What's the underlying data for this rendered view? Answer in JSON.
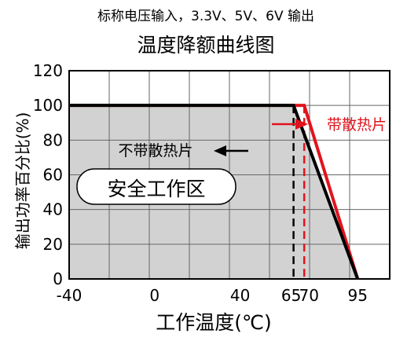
{
  "chart_data": {
    "type": "line",
    "subtitle": "标称电压输入，3.3V、5V、6V 输出",
    "title": "温度降额曲线图",
    "xlabel": "工作温度(℃)",
    "ylabel": "输出功率百分比(%)",
    "xlim": [
      -40,
      110
    ],
    "ylim": [
      0,
      120
    ],
    "x_ticks": [
      -40,
      0,
      40,
      65,
      70,
      95
    ],
    "y_ticks": [
      0,
      20,
      40,
      60,
      80,
      100,
      120
    ],
    "grid": true,
    "series": [
      {
        "name": "不带散热片",
        "color": "#000000",
        "x": [
          -40,
          65,
          95
        ],
        "y": [
          100,
          100,
          0
        ]
      },
      {
        "name": "带散热片",
        "color": "#e0141e",
        "x": [
          -40,
          70,
          95
        ],
        "y": [
          100,
          100,
          0
        ]
      }
    ],
    "marker_lines": [
      {
        "x": 65,
        "color": "#000000"
      },
      {
        "x": 70,
        "color": "#e0141e"
      }
    ],
    "region_label": "安全工作区"
  }
}
